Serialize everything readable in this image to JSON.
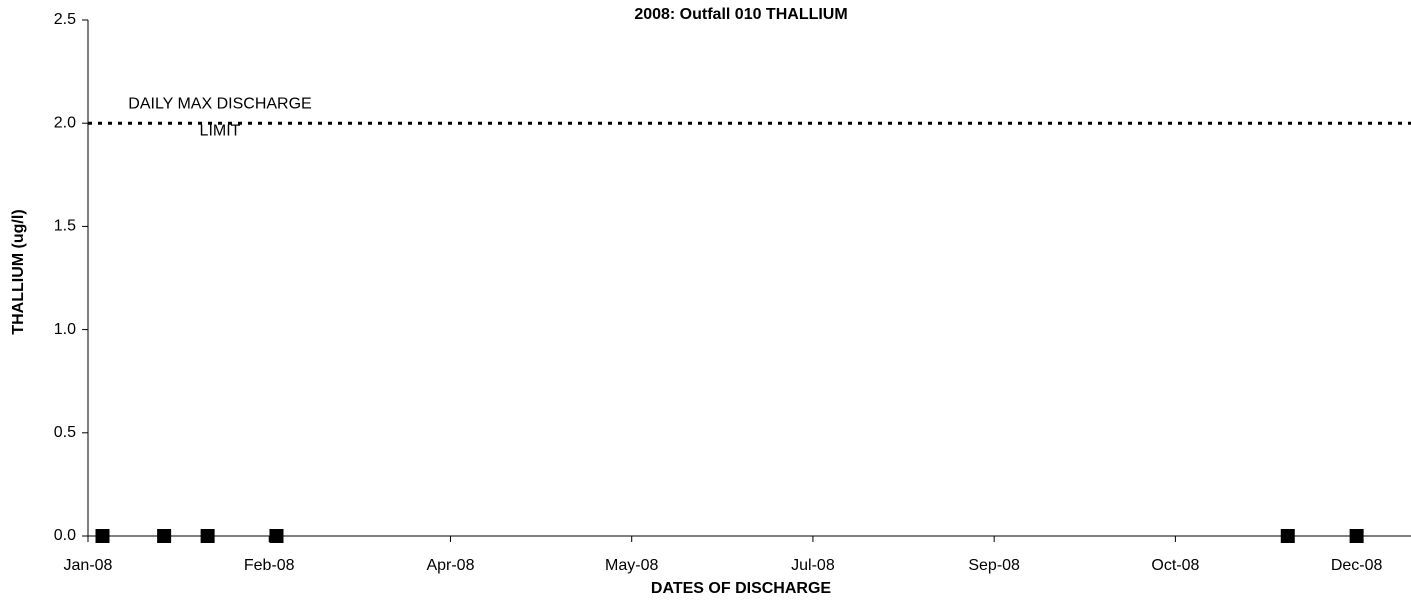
{
  "chart_data": {
    "type": "scatter",
    "title": "2008: Outfall 010 THALLIUM",
    "xlabel": "DATES OF DISCHARGE",
    "ylabel": "THALLIUM (ug/l)",
    "series": [
      {
        "name": "THALLIUM",
        "color": "#000000",
        "x": [
          4,
          21,
          33,
          52,
          331,
          350
        ],
        "values": [
          0,
          0,
          0,
          0,
          0,
          0
        ]
      }
    ],
    "xlim": [
      0,
      365
    ],
    "xticks": [
      {
        "value": 0,
        "label": "Jan-08"
      },
      {
        "value": 50,
        "label": "Feb-08"
      },
      {
        "value": 100,
        "label": "Apr-08"
      },
      {
        "value": 150,
        "label": "May-08"
      },
      {
        "value": 200,
        "label": "Jul-08"
      },
      {
        "value": 250,
        "label": "Sep-08"
      },
      {
        "value": 300,
        "label": "Oct-08"
      },
      {
        "value": 350,
        "label": "Dec-08"
      }
    ],
    "ylim": [
      0,
      2.5
    ],
    "yticks": [
      {
        "value": 0,
        "label": "0.0"
      },
      {
        "value": 0.5,
        "label": "0.5"
      },
      {
        "value": 1,
        "label": "1.0"
      },
      {
        "value": 1.5,
        "label": "1.5"
      },
      {
        "value": 2,
        "label": "2.0"
      },
      {
        "value": 2.5,
        "label": "2.5"
      }
    ],
    "limit": 2,
    "annotation_lines": [
      "DAILY MAX DISCHARGE",
      "LIMIT"
    ]
  }
}
